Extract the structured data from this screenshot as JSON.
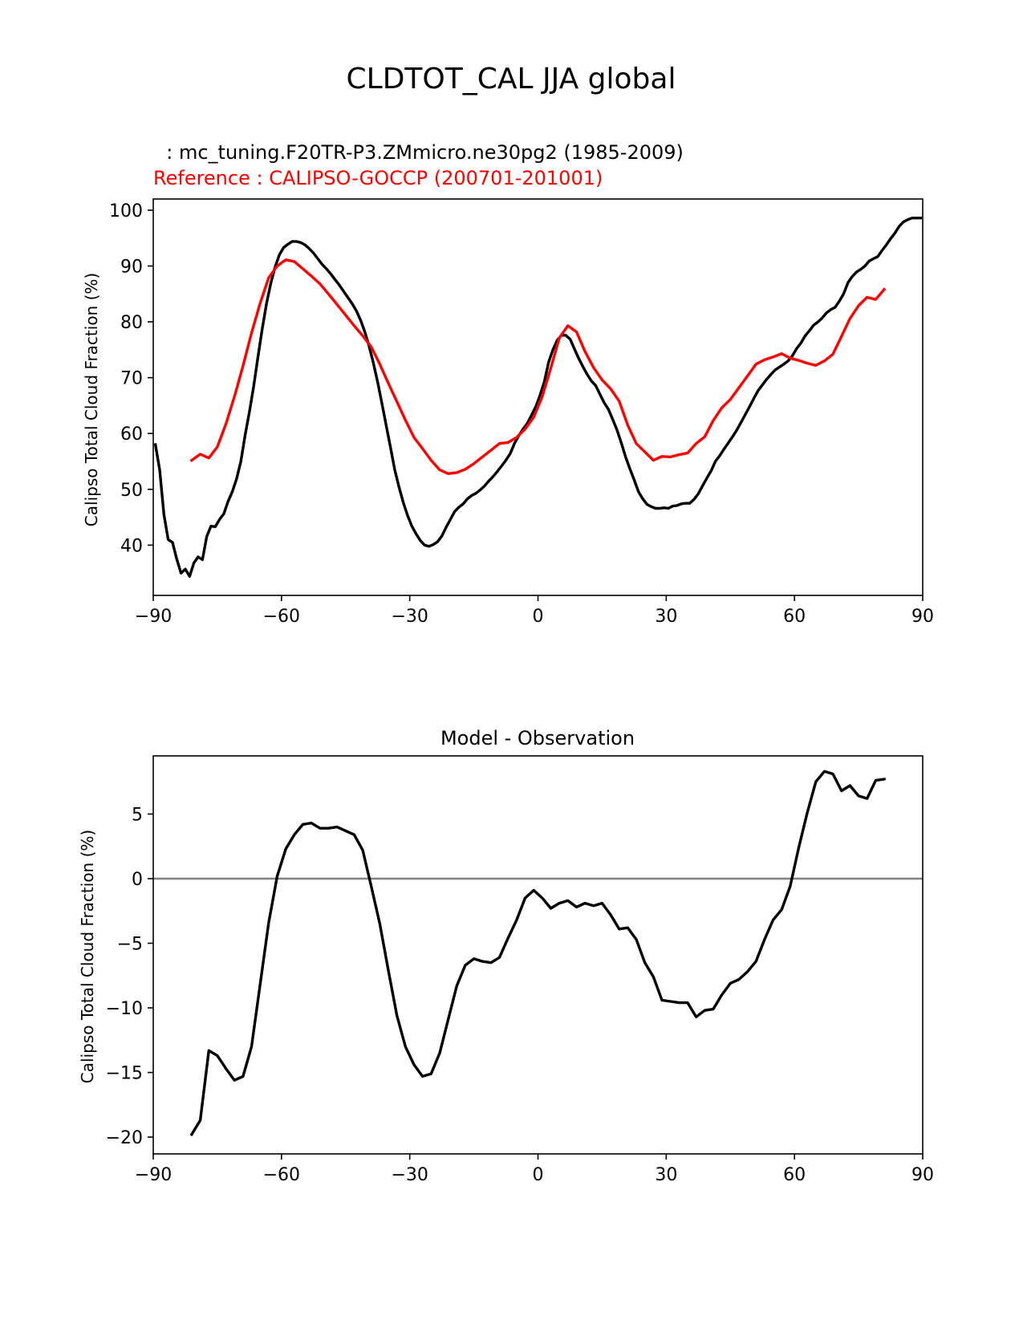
{
  "figure_title": "CLDTOT_CAL JJA global",
  "colors": {
    "model": "#000000",
    "reference": "#ff0000",
    "zero_line": "#808080",
    "axes": "#000000"
  },
  "chart_data": [
    {
      "type": "line",
      "subtitle_model": "  : mc_tuning.F20TR-P3.ZMmicro.ne30pg2 (1985-2009)",
      "subtitle_reference": "Reference : CALIPSO-GOCCP (200701-201001)",
      "xlabel": "",
      "ylabel": "Calipso Total Cloud Fraction (%)",
      "xlim": [
        -90,
        90
      ],
      "ylim": [
        31,
        102
      ],
      "xticks": [
        -90,
        -60,
        -30,
        0,
        30,
        60,
        90
      ],
      "xtick_labels": [
        "−90",
        "−60",
        "−30",
        "0",
        "30",
        "60",
        "90"
      ],
      "yticks": [
        40,
        50,
        60,
        70,
        80,
        90,
        100
      ],
      "ytick_labels": [
        "40",
        "50",
        "60",
        "70",
        "80",
        "90",
        "100"
      ],
      "series": [
        {
          "name": "model",
          "color": "#000000",
          "x": [
            -89.5,
            -88.5,
            -87.5,
            -86.5,
            -85.5,
            -84.5,
            -83.5,
            -82.5,
            -81.5,
            -80.5,
            -79.5,
            -78.5,
            -77.5,
            -76.5,
            -75.5,
            -74.5,
            -73.5,
            -72.5,
            -71.5,
            -70.5,
            -69.5,
            -68.5,
            -67.5,
            -66.5,
            -65.5,
            -64.5,
            -63.5,
            -62.5,
            -61.5,
            -60.5,
            -59.5,
            -58.5,
            -57.5,
            -56.5,
            -55.5,
            -54.5,
            -53.5,
            -52.5,
            -51.5,
            -50.5,
            -49.5,
            -48.5,
            -47.5,
            -46.5,
            -45.5,
            -44.5,
            -43.5,
            -42.5,
            -41.5,
            -40.5,
            -39.5,
            -38.5,
            -37.5,
            -36.5,
            -35.5,
            -34.5,
            -33.5,
            -32.5,
            -31.5,
            -30.5,
            -29.5,
            -28.5,
            -27.5,
            -26.5,
            -25.5,
            -24.5,
            -23.5,
            -22.5,
            -21.5,
            -20.5,
            -19.5,
            -18.5,
            -17.5,
            -16.5,
            -15.5,
            -14.5,
            -13.5,
            -12.5,
            -11.5,
            -10.5,
            -9.5,
            -8.5,
            -7.5,
            -6.5,
            -5.5,
            -4.5,
            -3.5,
            -2.5,
            -1.5,
            -0.5,
            0.5,
            1.5,
            2.5,
            3.5,
            4.5,
            5.5,
            6.5,
            7.5,
            8.5,
            9.5,
            10.5,
            11.5,
            12.5,
            13.5,
            14.5,
            15.5,
            16.5,
            17.5,
            18.5,
            19.5,
            20.5,
            21.5,
            22.5,
            23.5,
            24.5,
            25.5,
            26.5,
            27.5,
            28.5,
            29.5,
            30.5,
            31.5,
            32.5,
            33.5,
            34.5,
            35.5,
            36.5,
            37.5,
            38.5,
            39.5,
            40.5,
            41.5,
            42.5,
            43.5,
            44.5,
            45.5,
            46.5,
            47.5,
            48.5,
            49.5,
            50.5,
            51.5,
            52.5,
            53.5,
            54.5,
            55.5,
            56.5,
            57.5,
            58.5,
            59.5,
            60.5,
            61.5,
            62.5,
            63.5,
            64.5,
            65.5,
            66.5,
            67.5,
            68.5,
            69.5,
            70.5,
            71.5,
            72.5,
            73.5,
            74.5,
            75.5,
            76.5,
            77.5,
            78.5,
            79.5,
            80.5,
            81.5,
            82.5,
            83.5,
            84.5,
            85.5,
            86.5,
            87.5,
            88.5,
            89.5
          ],
          "values": [
            58.0,
            53.5,
            45.5,
            41.0,
            40.5,
            37.5,
            35.0,
            35.7,
            34.4,
            36.8,
            37.9,
            37.4,
            41.5,
            43.4,
            43.3,
            44.6,
            45.6,
            47.8,
            49.6,
            51.9,
            55.0,
            59.7,
            63.9,
            68.5,
            73.7,
            78.8,
            83.3,
            86.9,
            89.8,
            92.0,
            93.3,
            93.9,
            94.4,
            94.4,
            94.2,
            93.8,
            93.1,
            92.3,
            91.3,
            90.3,
            89.5,
            88.6,
            87.6,
            86.6,
            85.5,
            84.4,
            83.3,
            82.0,
            80.3,
            78.2,
            75.6,
            72.6,
            69.2,
            65.4,
            61.4,
            57.5,
            53.5,
            50.4,
            47.6,
            45.3,
            43.4,
            42.0,
            40.8,
            40.0,
            39.8,
            40.1,
            40.6,
            41.6,
            43.2,
            44.6,
            46.0,
            46.8,
            47.4,
            48.3,
            48.9,
            49.3,
            49.9,
            50.6,
            51.5,
            52.3,
            53.2,
            54.2,
            55.2,
            56.4,
            58.2,
            59.6,
            60.8,
            61.8,
            63.3,
            64.8,
            66.9,
            69.3,
            72.8,
            75.0,
            76.7,
            77.6,
            77.6,
            76.9,
            75.2,
            73.5,
            72.0,
            70.6,
            69.4,
            68.6,
            67.0,
            65.5,
            64.3,
            62.5,
            60.6,
            58.3,
            55.8,
            53.7,
            51.7,
            49.6,
            48.3,
            47.3,
            46.9,
            46.6,
            46.6,
            46.7,
            46.6,
            47.0,
            47.1,
            47.4,
            47.5,
            47.5,
            48.2,
            49.2,
            50.6,
            52.0,
            53.3,
            55.0,
            56.0,
            57.2,
            58.3,
            59.4,
            60.6,
            62.0,
            63.4,
            64.8,
            66.3,
            67.7,
            68.7,
            69.7,
            70.6,
            71.4,
            71.9,
            72.4,
            73.0,
            73.9,
            75.2,
            76.2,
            77.5,
            78.4,
            79.4,
            80.0,
            80.7,
            81.6,
            82.2,
            82.6,
            83.7,
            85.0,
            87.0,
            88.1,
            88.9,
            89.4,
            90.0,
            90.9,
            91.3,
            91.7,
            92.8,
            93.8,
            94.9,
            95.9,
            97.1,
            97.9,
            98.3,
            98.6,
            98.6,
            98.6
          ]
        },
        {
          "name": "reference",
          "color": "#ff0000",
          "x": [
            -81,
            -79,
            -77,
            -75,
            -73,
            -71,
            -69,
            -67,
            -65,
            -63,
            -61,
            -59,
            -57,
            -55,
            -53,
            -51,
            -49,
            -47,
            -45,
            -43,
            -41,
            -39,
            -37,
            -35,
            -33,
            -31,
            -29,
            -27,
            -25,
            -23,
            -21,
            -19,
            -17,
            -15,
            -13,
            -11,
            -9,
            -7,
            -5,
            -3,
            -1,
            1,
            3,
            5,
            7,
            9,
            11,
            13,
            15,
            17,
            19,
            21,
            23,
            25,
            27,
            29,
            31,
            33,
            35,
            37,
            39,
            41,
            43,
            45,
            47,
            49,
            51,
            53,
            55,
            57,
            59,
            61,
            63,
            65,
            67,
            69,
            71,
            73,
            75,
            77,
            79,
            81
          ],
          "values": [
            55.2,
            56.3,
            55.6,
            57.6,
            61.7,
            66.6,
            72.1,
            78.0,
            83.3,
            87.9,
            90.0,
            91.1,
            90.8,
            89.5,
            88.2,
            86.8,
            85.0,
            83.1,
            81.2,
            79.3,
            77.5,
            75.5,
            72.4,
            69.0,
            65.7,
            62.4,
            59.3,
            57.3,
            55.2,
            53.5,
            52.8,
            53.0,
            53.6,
            54.6,
            55.8,
            57.0,
            58.2,
            58.4,
            59.3,
            60.8,
            62.9,
            66.6,
            71.7,
            77.1,
            79.3,
            78.2,
            74.7,
            71.8,
            69.6,
            68.0,
            65.8,
            61.5,
            58.2,
            56.7,
            55.2,
            55.9,
            55.8,
            56.2,
            56.5,
            58.2,
            59.4,
            62.3,
            64.6,
            66.1,
            68.2,
            70.3,
            72.4,
            73.2,
            73.7,
            74.3,
            73.5,
            73.1,
            72.6,
            72.2,
            73.0,
            74.2,
            77.4,
            80.6,
            82.9,
            84.4,
            84.0,
            85.8
          ]
        }
      ]
    },
    {
      "type": "line",
      "title": "Model - Observation",
      "xlabel": "",
      "ylabel": "Calipso Total Cloud Fraction (%)",
      "xlim": [
        -90,
        90
      ],
      "ylim": [
        -21.3,
        9.5
      ],
      "xticks": [
        -90,
        -60,
        -30,
        0,
        30,
        60,
        90
      ],
      "xtick_labels": [
        "−90",
        "−60",
        "−30",
        "0",
        "30",
        "60",
        "90"
      ],
      "yticks": [
        -20,
        -15,
        -10,
        -5,
        0,
        5
      ],
      "ytick_labels": [
        "−20",
        "−15",
        "−10",
        "−5",
        "0",
        "5"
      ],
      "zero_line": 0,
      "series": [
        {
          "name": "difference",
          "color": "#000000",
          "x": [
            -81,
            -79,
            -77,
            -75,
            -73,
            -71,
            -69,
            -67,
            -65,
            -63,
            -61,
            -59,
            -57,
            -55,
            -53,
            -51,
            -49,
            -47,
            -45,
            -43,
            -41,
            -39,
            -37,
            -35,
            -33,
            -31,
            -29,
            -27,
            -25,
            -23,
            -21,
            -19,
            -17,
            -15,
            -13,
            -11,
            -9,
            -7,
            -5,
            -3,
            -1,
            1,
            3,
            5,
            7,
            9,
            11,
            13,
            15,
            17,
            19,
            21,
            23,
            25,
            27,
            29,
            31,
            33,
            35,
            37,
            39,
            41,
            43,
            45,
            47,
            49,
            51,
            53,
            55,
            57,
            59,
            61,
            63,
            65,
            67,
            69,
            71,
            73,
            75,
            77,
            79,
            81
          ],
          "values": [
            -19.8,
            -18.7,
            -13.3,
            -13.7,
            -14.7,
            -15.6,
            -15.3,
            -13.0,
            -8.2,
            -3.4,
            0.2,
            2.3,
            3.4,
            4.2,
            4.3,
            3.9,
            3.9,
            4.0,
            3.7,
            3.4,
            2.2,
            -0.6,
            -3.5,
            -7.1,
            -10.6,
            -13.0,
            -14.4,
            -15.3,
            -15.1,
            -13.5,
            -10.9,
            -8.3,
            -6.7,
            -6.2,
            -6.4,
            -6.5,
            -6.1,
            -4.6,
            -3.2,
            -1.5,
            -0.9,
            -1.5,
            -2.3,
            -1.9,
            -1.7,
            -2.2,
            -1.9,
            -2.1,
            -1.9,
            -2.8,
            -3.9,
            -3.8,
            -4.7,
            -6.5,
            -7.6,
            -9.4,
            -9.5,
            -9.6,
            -9.6,
            -10.7,
            -10.2,
            -10.1,
            -9.0,
            -8.1,
            -7.8,
            -7.2,
            -6.4,
            -4.7,
            -3.2,
            -2.4,
            -0.6,
            2.4,
            5.1,
            7.5,
            8.3,
            8.1,
            6.8,
            7.2,
            6.4,
            6.2,
            7.6,
            7.7
          ]
        }
      ]
    }
  ]
}
